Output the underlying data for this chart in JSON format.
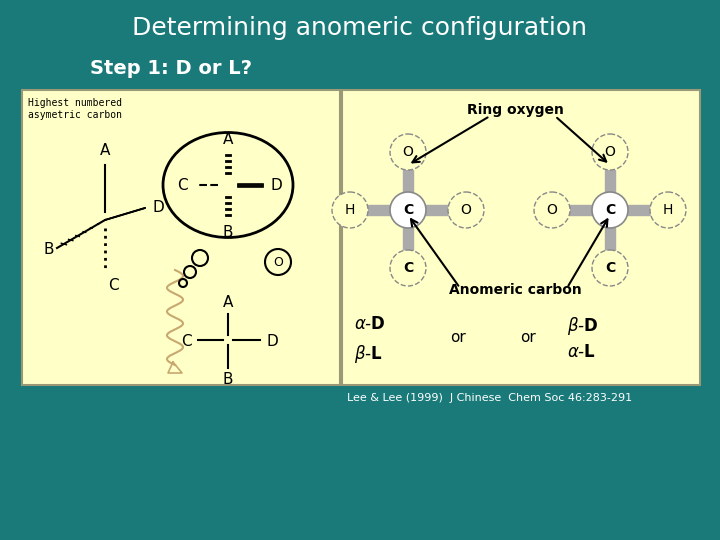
{
  "bg_color": "#1a7a7a",
  "title": "Determining anomeric configuration",
  "title_color": "#ffffff",
  "title_fontsize": 18,
  "step_text": "Step 1: D or L?",
  "step_color": "#ffffff",
  "step_fontsize": 14,
  "panel_bg": "#ffffc8",
  "citation": "Lee & Lee (1999)  J Chinese  Chem Soc 46:283-291",
  "citation_color": "#ffffff",
  "citation_fontsize": 8,
  "gray_bond": "#aaaaaa",
  "circle_edge": "#888888"
}
